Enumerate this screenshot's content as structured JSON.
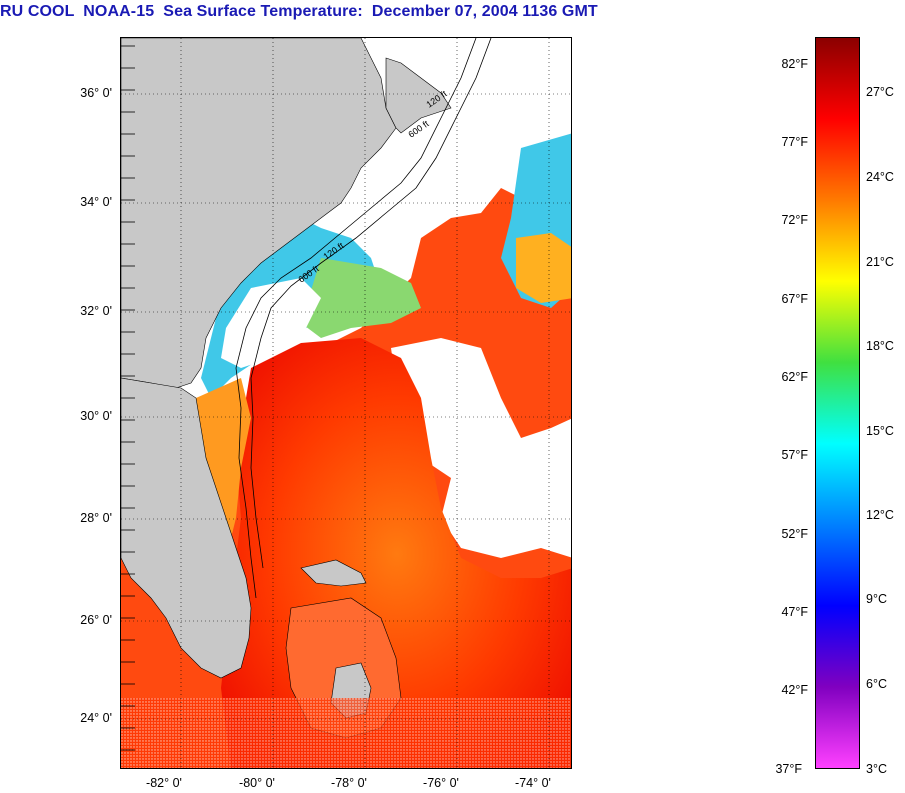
{
  "title": "RU COOL  NOAA-15  Sea Surface Temperature:  December 07, 2004 1136 GMT",
  "map": {
    "latitude_labels": [
      "36° 0'",
      "34° 0'",
      "32° 0'",
      "30° 0'",
      "28° 0'",
      "26° 0'",
      "24° 0'"
    ],
    "longitude_labels": [
      "-82° 0'",
      "-80° 0'",
      "-78° 0'",
      "-76° 0'",
      "-74° 0'"
    ],
    "contour_labels": [
      "120 ft",
      "600 ft"
    ],
    "colors": {
      "land": "#c8c8c8",
      "cloud": "#ffffff",
      "warm": "#ff2a00",
      "hot": "#ee1100",
      "mid": "#ffaa00",
      "cool": "#00c8ff",
      "cold": "#3070ff"
    }
  },
  "colorbar": {
    "fahrenheit_labels": [
      "82°F",
      "77°F",
      "72°F",
      "67°F",
      "62°F",
      "57°F",
      "52°F",
      "47°F",
      "42°F",
      "37°F"
    ],
    "celsius_labels": [
      "27°C",
      "24°C",
      "21°C",
      "18°C",
      "15°C",
      "12°C",
      "9°C",
      "6°C",
      "3°C"
    ],
    "gradient_colors": [
      "#8b0000",
      "#ff0000",
      "#ff7a00",
      "#ffff00",
      "#40e040",
      "#00ffff",
      "#0080ff",
      "#0000ff",
      "#8000c0",
      "#ff40ff"
    ]
  }
}
